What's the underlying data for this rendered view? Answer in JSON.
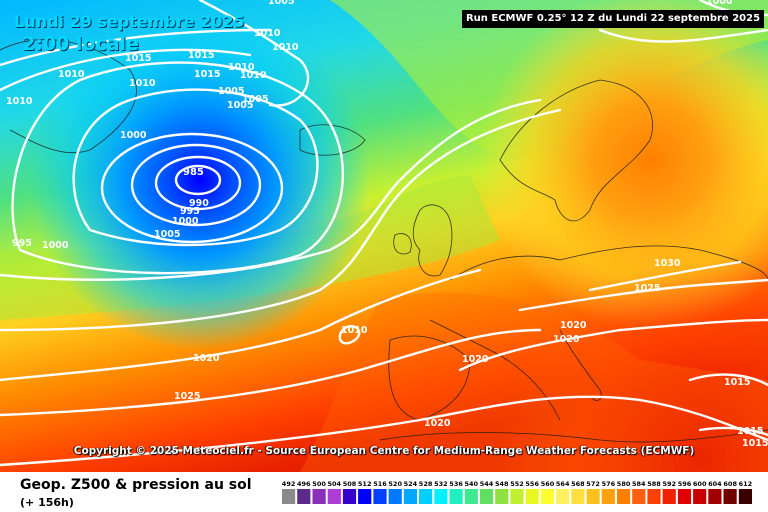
{
  "header": {
    "date": "Lundi 29 septembre 2025",
    "time": "2:00 locale",
    "run": "Run ECMWF 0.25° 12 Z du Lundi 22 septembre 2025"
  },
  "copyright": "Copyright © 2025 Meteociel.fr - Source European Centre for Medium-Range Weather Forecasts (ECMWF)",
  "footer": {
    "title": "Geop. Z500 & pression au sol",
    "lead": "(+ 156h)"
  },
  "legend": {
    "values": [
      "492",
      "496",
      "500",
      "504",
      "508",
      "512",
      "516",
      "520",
      "524",
      "528",
      "532",
      "536",
      "540",
      "544",
      "548",
      "552",
      "556",
      "560",
      "564",
      "568",
      "572",
      "576",
      "580",
      "584",
      "588",
      "592",
      "596",
      "600",
      "604",
      "608",
      "612"
    ],
    "colors": [
      "#8a8a8a",
      "#5c2a8a",
      "#8a2fb8",
      "#b03cd8",
      "#3300cc",
      "#0000ff",
      "#0040ff",
      "#0078ff",
      "#00a8ff",
      "#00d0ff",
      "#00f0ff",
      "#20f0c0",
      "#40e890",
      "#60e060",
      "#90e040",
      "#c0f030",
      "#e8f820",
      "#ffff30",
      "#fff060",
      "#ffe040",
      "#ffc020",
      "#ffa010",
      "#ff8000",
      "#ff6010",
      "#ff4000",
      "#f02000",
      "#e00000",
      "#c80000",
      "#a00000",
      "#700000",
      "#380000"
    ]
  },
  "isobars": [
    "1005",
    "1010",
    "1015",
    "1010",
    "1015",
    "1010",
    "1010",
    "1005",
    "1005",
    "1005",
    "1010",
    "1000",
    "985",
    "990",
    "995",
    "1000",
    "1005",
    "1010",
    "1010",
    "1015",
    "995",
    "1000",
    "1010",
    "1020",
    "1025",
    "1020",
    "1020",
    "1020",
    "1025",
    "1030",
    "1000",
    "1015",
    "1015",
    "1015",
    "1020"
  ],
  "colors": {
    "low_center": "#0000ff",
    "high_core": "#ff8000",
    "isobar": "#ffffff",
    "title_accent": "#00d8ff"
  }
}
